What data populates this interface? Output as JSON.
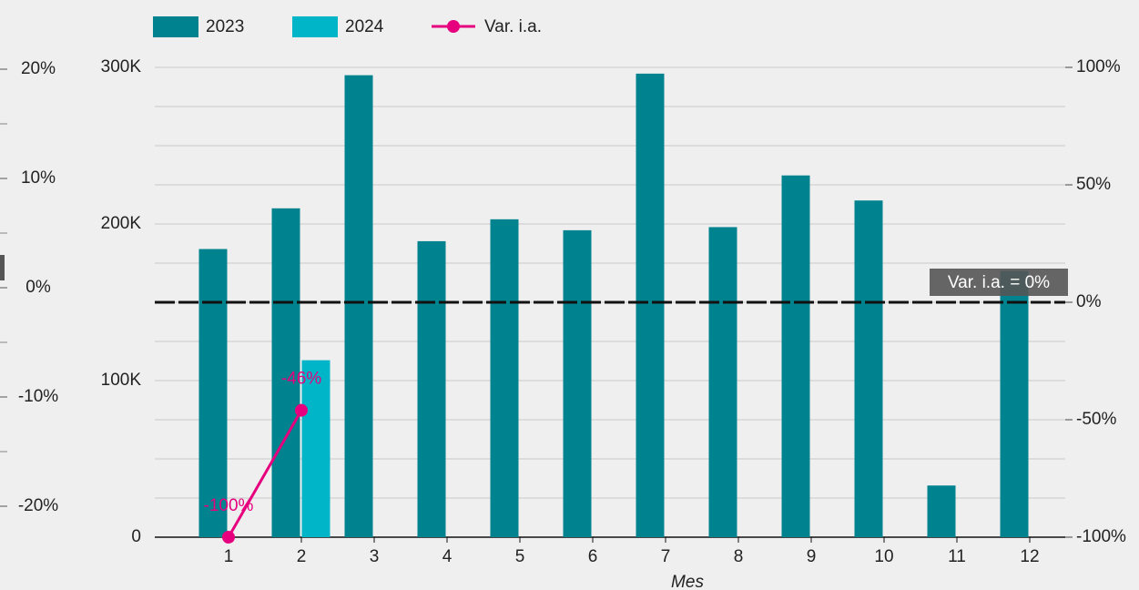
{
  "chart_data": [
    {
      "type": "bar",
      "x_label": "Mes",
      "categories": [
        "1",
        "2",
        "3",
        "4",
        "5",
        "6",
        "7",
        "8",
        "9",
        "10",
        "11",
        "12"
      ],
      "series": [
        {
          "name": "2023",
          "color": "#00838f",
          "values": [
            184000,
            210000,
            295000,
            189000,
            203000,
            196000,
            296000,
            198000,
            231000,
            215000,
            33000,
            170000
          ]
        },
        {
          "name": "2024",
          "color": "#00b5c8",
          "values": [
            0,
            113000,
            null,
            null,
            null,
            null,
            null,
            null,
            null,
            null,
            null,
            null
          ]
        },
        {
          "name": "Var. i.a.",
          "type": "line",
          "axis": "y2",
          "color": "#e6007e",
          "values": [
            -100,
            -46,
            null,
            null,
            null,
            null,
            null,
            null,
            null,
            null,
            null,
            null
          ],
          "value_labels": [
            "-100%",
            "-46%",
            null,
            null,
            null,
            null,
            null,
            null,
            null,
            null,
            null,
            null
          ]
        }
      ],
      "ylim": [
        0,
        300000
      ],
      "yticks": [
        {
          "value": 0,
          "label": "0"
        },
        {
          "value": 100000,
          "label": "100K"
        },
        {
          "value": 200000,
          "label": "200K"
        },
        {
          "value": 300000,
          "label": "300K"
        }
      ],
      "minor_yticks": [
        25000,
        50000,
        75000,
        125000,
        150000,
        175000,
        225000,
        250000,
        275000
      ],
      "y2lim": [
        -100,
        100
      ],
      "y2ticks": [
        {
          "value": -100,
          "label": "-100%"
        },
        {
          "value": -50,
          "label": "-50%"
        },
        {
          "value": 0,
          "label": "0%"
        },
        {
          "value": 50,
          "label": "50%"
        },
        {
          "value": 100,
          "label": "100%"
        }
      ],
      "reference_line": {
        "axis": "y2",
        "value": 0,
        "label": "Var. i.a. = 0%"
      },
      "grid": true
    },
    {
      "type": "line",
      "ylim": [
        -25,
        25
      ],
      "yticks": [
        {
          "value": -20,
          "label": "-20%"
        },
        {
          "value": -10,
          "label": "-10%"
        },
        {
          "value": 0,
          "label": "0%"
        },
        {
          "value": 10,
          "label": "10%"
        },
        {
          "value": 20,
          "label": "20%"
        }
      ],
      "minor_yticks": [
        -15,
        -5,
        5,
        15
      ]
    }
  ]
}
